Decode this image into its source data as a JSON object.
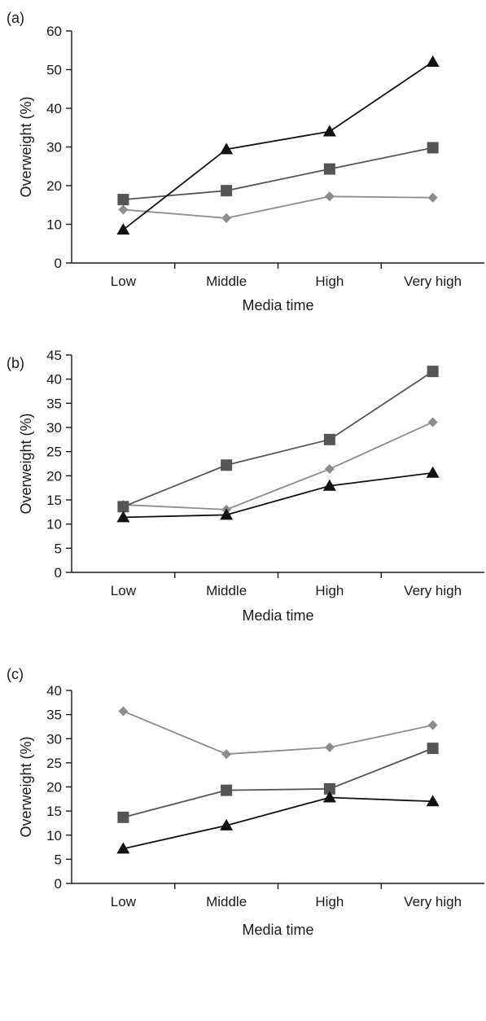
{
  "chart_data": [
    {
      "type": "line",
      "panel_label": "(a)",
      "categories": [
        "Low",
        "Middle",
        "High",
        "Very high"
      ],
      "xlabel": "Media time",
      "ylabel": "Overweight (%)",
      "ylim": [
        0,
        60
      ],
      "yticks": [
        0,
        10,
        20,
        30,
        40,
        50,
        60
      ],
      "grid": false,
      "series": [
        {
          "marker": "diamond",
          "color": "#8c8c8c",
          "values": [
            13.8,
            11.6,
            17.2,
            16.9
          ]
        },
        {
          "marker": "square",
          "color": "#555555",
          "values": [
            16.4,
            18.7,
            24.3,
            29.8
          ]
        },
        {
          "marker": "triangle",
          "color": "#111111",
          "values": [
            8.6,
            29.4,
            34.0,
            52.0
          ]
        }
      ]
    },
    {
      "type": "line",
      "panel_label": "(b)",
      "categories": [
        "Low",
        "Middle",
        "High",
        "Very high"
      ],
      "xlabel": "Media time",
      "ylabel": "Overweight (%)",
      "ylim": [
        0,
        45
      ],
      "yticks": [
        0,
        5,
        10,
        15,
        20,
        25,
        30,
        35,
        40,
        45
      ],
      "grid": false,
      "series": [
        {
          "marker": "diamond",
          "color": "#8c8c8c",
          "values": [
            14.0,
            13.0,
            21.4,
            31.1
          ]
        },
        {
          "marker": "square",
          "color": "#555555",
          "values": [
            13.6,
            22.2,
            27.5,
            41.6
          ]
        },
        {
          "marker": "triangle",
          "color": "#111111",
          "values": [
            11.4,
            11.9,
            17.9,
            20.6
          ]
        }
      ]
    },
    {
      "type": "line",
      "panel_label": "(c)",
      "categories": [
        "Low",
        "Middle",
        "High",
        "Very high"
      ],
      "xlabel": "Media time",
      "ylabel": "Overweight (%)",
      "ylim": [
        0,
        40
      ],
      "yticks": [
        0,
        5,
        10,
        15,
        20,
        25,
        30,
        35,
        40
      ],
      "grid": false,
      "series": [
        {
          "marker": "diamond",
          "color": "#8c8c8c",
          "values": [
            35.7,
            26.8,
            28.2,
            32.8
          ]
        },
        {
          "marker": "square",
          "color": "#555555",
          "values": [
            13.7,
            19.3,
            19.6,
            28.0
          ]
        },
        {
          "marker": "triangle",
          "color": "#111111",
          "values": [
            7.2,
            12.0,
            17.8,
            17.0
          ]
        }
      ]
    }
  ]
}
